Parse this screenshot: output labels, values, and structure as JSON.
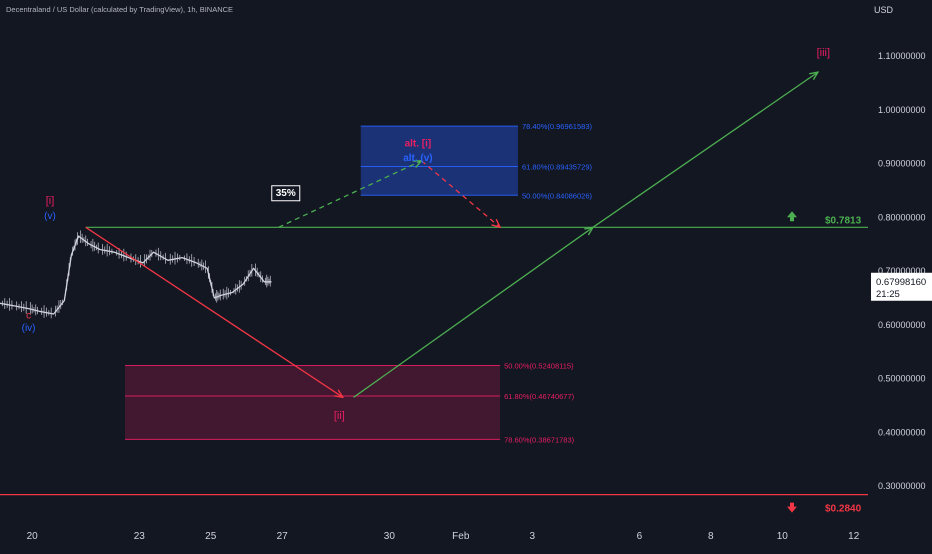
{
  "header": {
    "symbol_title": "Decentraland / US Dollar (calculated by TradingView), 1h, BINANCE",
    "currency": "USD"
  },
  "price_box": {
    "price": "0.67998160",
    "countdown": "21:25"
  },
  "chart_data": {
    "type": "line",
    "title": "Decentraland / US Dollar (calculated by TradingView), 1h, BINANCE",
    "ylabel": "USD",
    "ylim": [
      0.25,
      1.15
    ],
    "y_ticks": [
      "1.10000000",
      "1.00000000",
      "0.90000000",
      "0.80000000",
      "0.70000000",
      "0.60000000",
      "0.50000000",
      "0.40000000",
      "0.30000000"
    ],
    "y_tick_values": [
      1.1,
      1.0,
      0.9,
      0.8,
      0.7,
      0.6,
      0.5,
      0.4,
      0.3
    ],
    "x_ticks": [
      "20",
      "23",
      "25",
      "27",
      "30",
      "Feb",
      "3",
      "6",
      "8",
      "10",
      "12"
    ],
    "x_tick_days": [
      20,
      23,
      25,
      27,
      30,
      32,
      34,
      37,
      39,
      41,
      43
    ],
    "xlim_days": [
      19.1,
      43.4
    ],
    "series": [
      {
        "values_x_days": [
          19.1,
          19.5,
          19.9,
          20.2,
          20.6,
          20.9,
          21.1,
          21.3,
          21.6,
          21.9,
          22.3,
          22.7,
          23.1,
          23.4,
          23.8,
          24.2,
          24.6,
          24.9,
          25.1,
          25.3,
          25.6,
          25.9,
          26.2,
          26.5,
          26.7
        ],
        "values_y": [
          0.64,
          0.635,
          0.63,
          0.625,
          0.62,
          0.645,
          0.73,
          0.765,
          0.75,
          0.74,
          0.735,
          0.725,
          0.715,
          0.735,
          0.72,
          0.725,
          0.715,
          0.705,
          0.65,
          0.655,
          0.66,
          0.675,
          0.705,
          0.68,
          0.68
        ]
      }
    ],
    "current_price": 0.6799816,
    "horizontal_levels": [
      {
        "value": 0.7813,
        "label": "$0.7813",
        "color": "#4caf50"
      },
      {
        "value": 0.284,
        "label": "$0.2840",
        "color": "#f23645"
      }
    ],
    "fib_zones": [
      {
        "name": "blue-zone",
        "color": "#2962ff",
        "levels": [
          {
            "label": "78.40%(0.96961583)",
            "value": 0.96961583
          },
          {
            "label": "61.80%(0.89435729)",
            "value": 0.89435729
          },
          {
            "label": "50.00%(0.84086026)",
            "value": 0.84086026
          }
        ]
      },
      {
        "name": "pink-zone",
        "color": "#e91e63",
        "levels": [
          {
            "label": "50.00%(0.52408115)",
            "value": 0.52408115
          },
          {
            "label": "61.80%(0.46740677)",
            "value": 0.46740677
          },
          {
            "label": "78.60%(0.38671783)",
            "value": 0.38671783
          }
        ]
      }
    ],
    "wave_labels": [
      {
        "text": "[i]",
        "color": "#e91e63"
      },
      {
        "text": "(v)",
        "color": "#2962ff"
      },
      {
        "text": "c",
        "color": "#f23645"
      },
      {
        "text": "(iv)",
        "color": "#2962ff"
      },
      {
        "text": "[ii]",
        "color": "#e91e63"
      },
      {
        "text": "[iii]",
        "color": "#e91e63"
      },
      {
        "text": "alt. [i]",
        "color": "#e91e63"
      },
      {
        "text": "alt. (v)",
        "color": "#2962ff"
      },
      {
        "text": "35%",
        "color": "#ffffff"
      }
    ],
    "projections": [
      {
        "from": [
          21.5,
          0.7813
        ],
        "to": [
          28.7,
          0.465
        ],
        "color": "#f23645",
        "dashed": false
      },
      {
        "from": [
          29.0,
          0.465
        ],
        "to": [
          35.7,
          0.7813
        ],
        "color": "#4caf50",
        "dashed": false
      },
      {
        "from": [
          35.7,
          0.7813
        ],
        "to": [
          42.0,
          1.07
        ],
        "color": "#4caf50",
        "dashed": false
      },
      {
        "from": [
          26.9,
          0.7813
        ],
        "to": [
          30.9,
          0.905
        ],
        "color": "#4caf50",
        "dashed": true
      },
      {
        "from": [
          30.9,
          0.905
        ],
        "to": [
          33.1,
          0.7813
        ],
        "color": "#f23645",
        "dashed": true
      }
    ],
    "colors": {
      "background": "#131722",
      "up": "#4caf50",
      "down": "#f23645",
      "candles": "#d1d4dc"
    },
    "grid": false
  }
}
